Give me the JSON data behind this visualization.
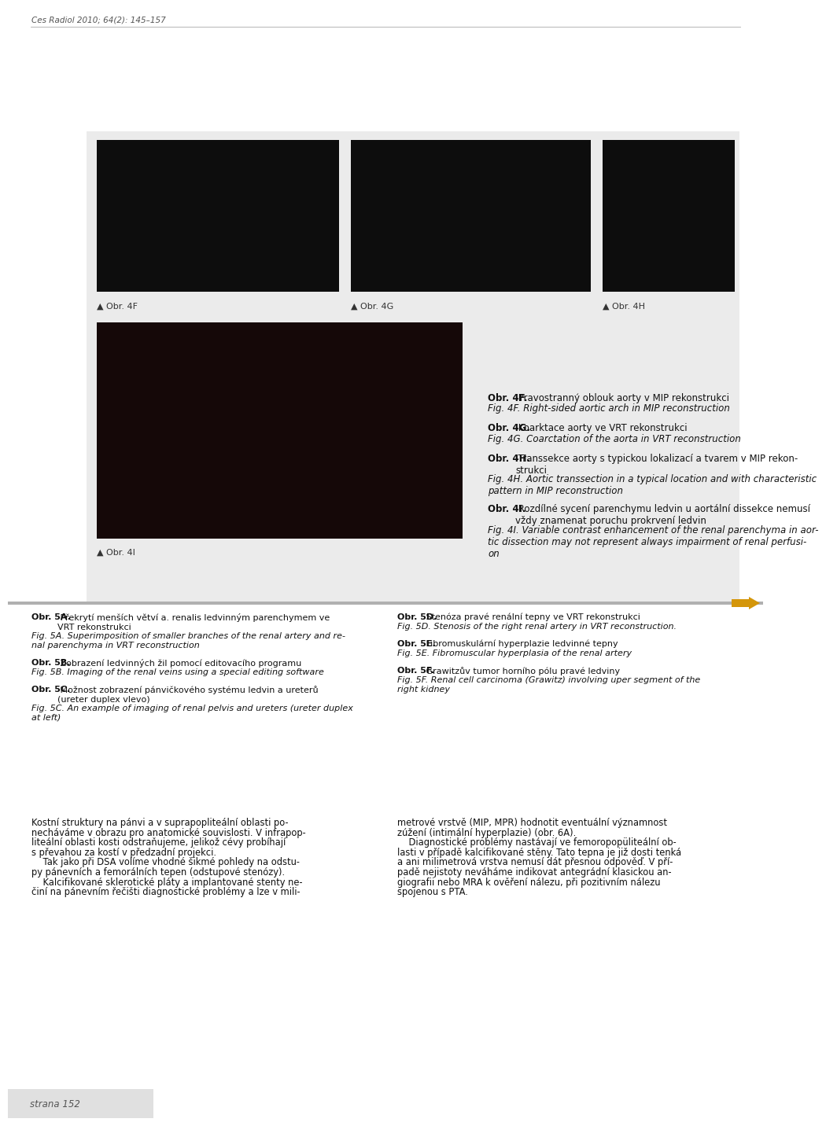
{
  "page_header": "Ces Radiol 2010; 64(2): 145–157",
  "page_footer": "strana 152",
  "bg_color": "#ffffff",
  "panel_bg": "#ebebeb",
  "separator_color": "#b0b0b0",
  "footer_bg": "#e0e0e0",
  "caption_4F_bold": "Obr. 4F.",
  "caption_4F_normal": " Pravostranný oblouk aorty v MIP rekonstrukci",
  "caption_4F_italic": "Fig. 4F. Right-sided aortic arch in MIP reconstruction",
  "caption_4G_bold": "Obr. 4G.",
  "caption_4G_normal": " Koarktace aorty ve VRT rekonstrukci",
  "caption_4G_italic": "Fig. 4G. Coarctation of the aorta in VRT reconstruction",
  "caption_4H_bold": "Obr. 4H.",
  "caption_4H_normal": " Transsekce aorty s typickou lokalizací a tvarem v MIP rekon-\nstrukci",
  "caption_4H_italic": "Fig. 4H. Aortic transsection in a typical location and with characteristic\npattern in MIP reconstruction",
  "caption_4I_bold": "Obr. 4I.",
  "caption_4I_normal": " Rozdílné sycení parenchymu ledvin u aortální dissekce nemusí\nvždy znamenat poruchu prokrvení ledvin",
  "caption_4I_italic": "Fig. 4I. Variable contrast enhancement of the renal parenchyma in aor-\ntic dissection may not represent always impairment of renal perfusi-\non",
  "label_4F": "▲ Obr. 4F",
  "label_4G": "▲ Obr. 4G",
  "label_4H": "▲ Obr. 4H",
  "label_4I": "▲ Obr. 4I",
  "sec2_left": [
    {
      "bold": "Obr. 5A.",
      "normal": " Překrytí menších větví a. renalis ledvinným parenchymem ve\nVRT rekonstrukci",
      "italic": "Fig. 5A. Superimposition of smaller branches of the renal artery and re-\nnal parenchyma in VRT reconstruction"
    },
    {
      "bold": "Obr. 5B.",
      "normal": " Zobrazení ledvinných žil pomocí editovacího programu",
      "italic": "Fig. 5B. Imaging of the renal veins using a special editing software"
    },
    {
      "bold": "Obr. 5C.",
      "normal": " Možnost zobrazení pánvičkového systému ledvin a ureterů\n(ureter duplex vlevo)",
      "italic": "Fig. 5C. An example of imaging of renal pelvis and ureters (ureter duplex\nat left)"
    }
  ],
  "sec2_right": [
    {
      "bold": "Obr. 5D.",
      "normal": " Stenóza pravé renální tepny ve VRT rekonstrukci",
      "italic": "Fig. 5D. Stenosis of the right renal artery in VRT reconstruction."
    },
    {
      "bold": "Obr. 5E.",
      "normal": " Fibromuskulární hyperplazie ledvinné tepny",
      "italic": "Fig. 5E. Fibromuscular hyperplasia of the renal artery"
    },
    {
      "bold": "Obr. 5F.",
      "normal": " Grawitzův tumor horního pólu pravé ledviny",
      "italic": "Fig. 5F. Renal cell carcinoma (Grawitz) involving uper segment of the\nright kidney"
    }
  ],
  "body_left": [
    "Kostní struktury na pánvi a v suprapopliteální oblasti po-",
    "necháváme v obrazu pro anatomické souvislosti. V infrapop-",
    "liteální oblasti kosti odstraňujeme, jelikož cévy probíhají",
    "s převahou za kostí v předzadní projekci.",
    "    Tak jako při DSA volíme vhodné šikmé pohledy na odstu-",
    "py pánevních a femorálních tepen (odstupové stenózy).",
    "    Kalcifikované sklerotické pláty a implantované stenty ne-",
    "činí na pánevním řečišti diagnostické problémy a lze v mili-"
  ],
  "body_right": [
    "metrové vrstvě (MIP, MPR) hodnotit eventuální významnost",
    "zúžení (intimální hyperplazie) (obr. 6A).",
    "    Diagnostické problémy nastávají ve femoropopüliteální ob-",
    "lasti v případě kalcifikované stěny. Tato tepna je již dosti tenká",
    "a ani milimetrová vrstva nemusí dát přesnou odpověď. V pří-",
    "padě nejistoty neváháme indikovat antegrádní klasickou an-",
    "giografii nebo MRA k ověření nálezu, při pozitivním nálezu",
    "spojenou s PTA."
  ]
}
